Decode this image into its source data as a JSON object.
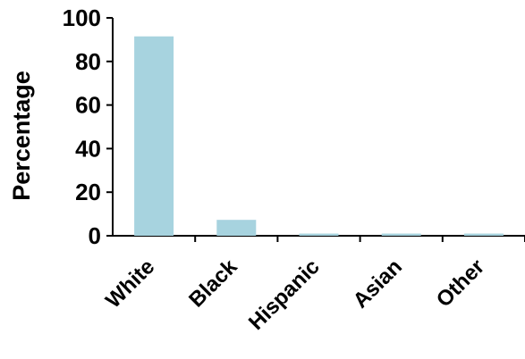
{
  "chart_data": {
    "type": "bar",
    "title": "",
    "xlabel": "",
    "ylabel": "Percentage",
    "categories": [
      "White",
      "Black",
      "Hispanic",
      "Asian",
      "Other"
    ],
    "series": [
      {
        "values": [
          91.5,
          7.3,
          1.0,
          1.0,
          1.0
        ]
      }
    ],
    "ylim": [
      0,
      100
    ],
    "yticks": [
      0,
      20,
      40,
      60,
      80,
      100
    ],
    "grid": false,
    "legend": "none",
    "colors": {
      "bar": "#a7d3df",
      "axis": "#000000",
      "text": "#000000"
    }
  }
}
